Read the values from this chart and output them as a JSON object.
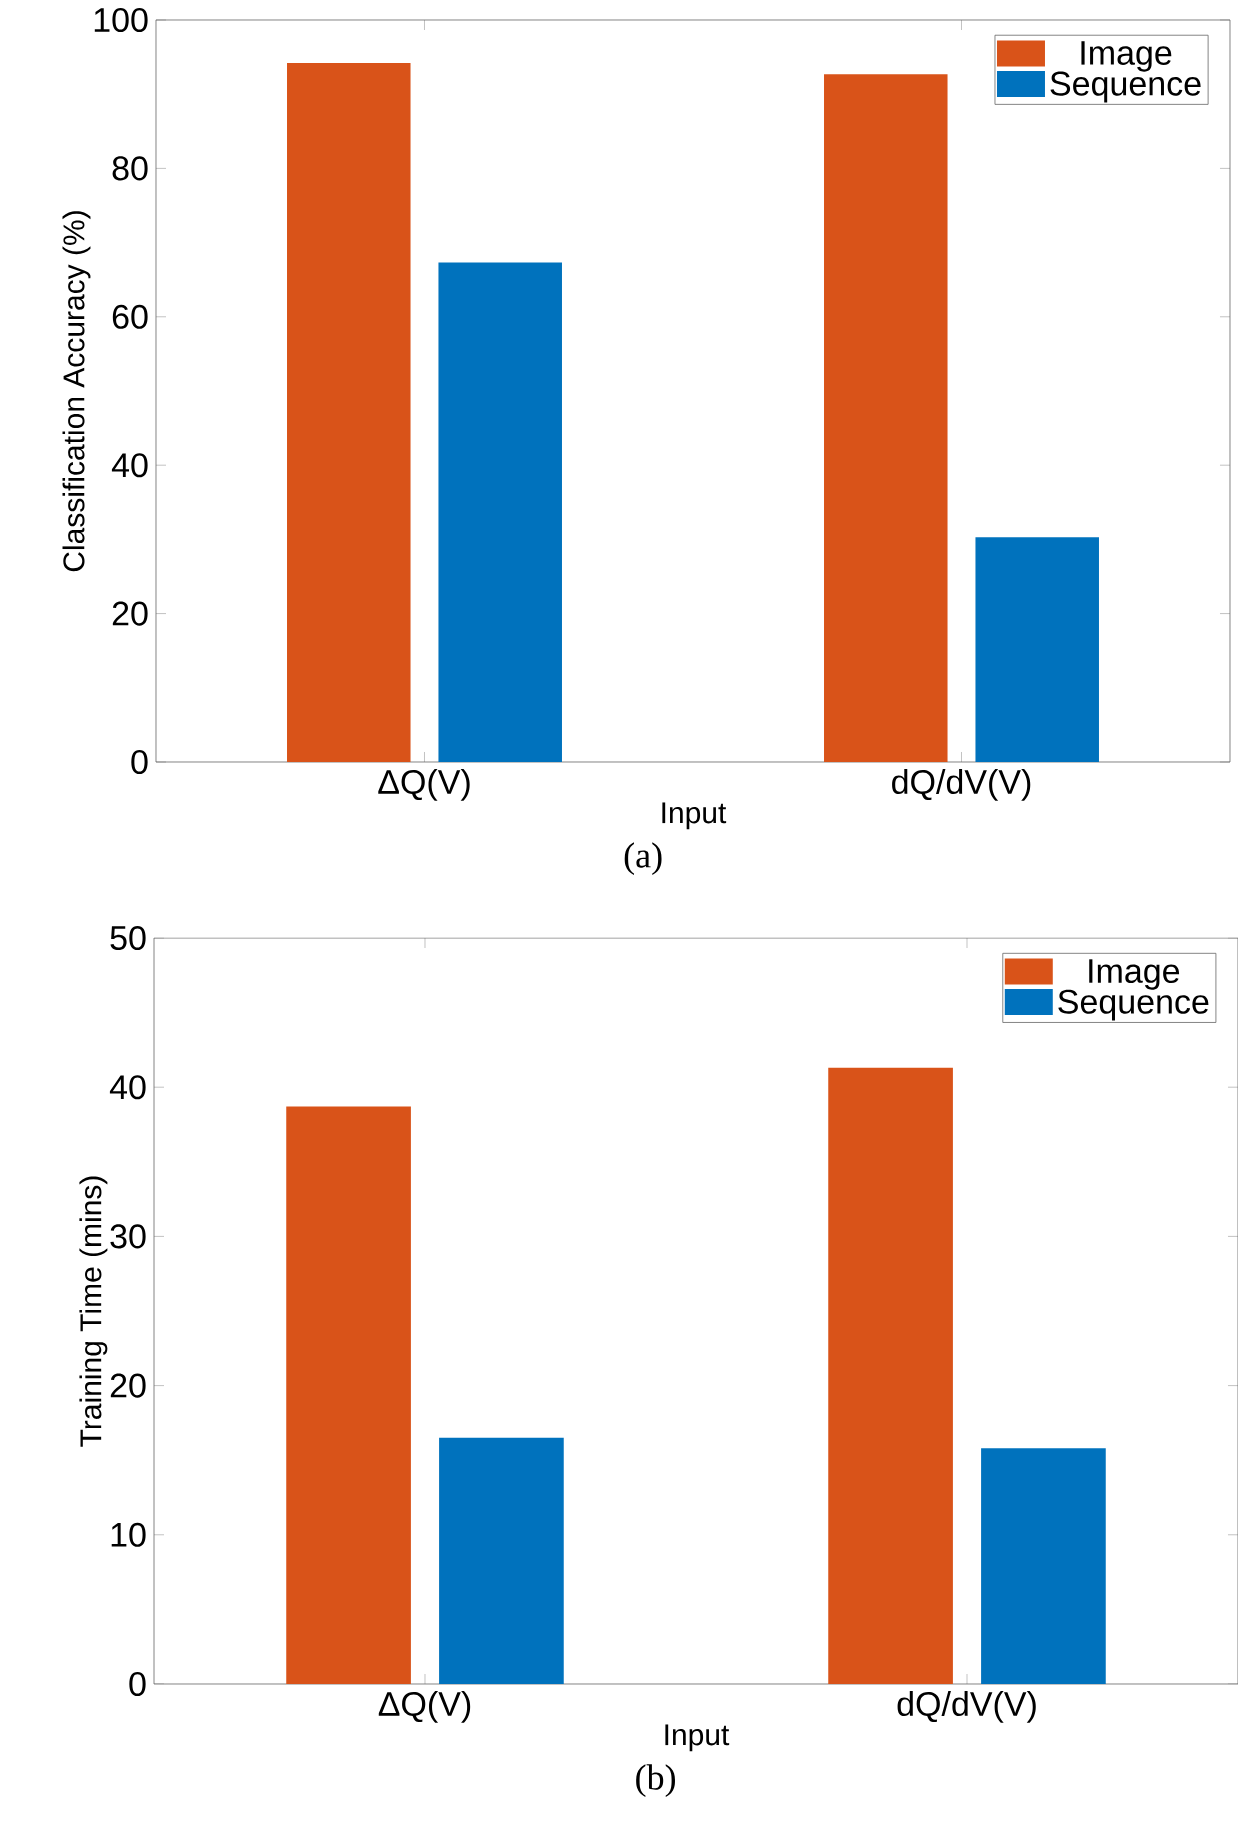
{
  "chart_data": [
    {
      "type": "bar",
      "categories": [
        "ΔQ(V)",
        "dQ/dV(V)"
      ],
      "xlabel": "Input",
      "ylabel": "Classification Accuracy (%)",
      "ylim": [
        0,
        100
      ],
      "yticks": [
        0,
        20,
        40,
        60,
        80,
        100
      ],
      "legend": "top right",
      "grid": false,
      "annotations": [
        "(a)"
      ],
      "series": [
        {
          "name": "Image",
          "color": "#d95319",
          "values": [
            94.2,
            92.7
          ]
        },
        {
          "name": "Sequence",
          "color": "#0072bd",
          "values": [
            67.3,
            30.3
          ]
        }
      ]
    },
    {
      "type": "bar",
      "categories": [
        "ΔQ(V)",
        "dQ/dV(V)"
      ],
      "xlabel": "Input",
      "ylabel": "Training Time (mins)",
      "ylim": [
        0,
        50
      ],
      "yticks": [
        0,
        10,
        20,
        30,
        40,
        50
      ],
      "legend": "top right",
      "grid": false,
      "annotations": [
        "(b)"
      ],
      "series": [
        {
          "name": "Image",
          "color": "#d95319",
          "values": [
            38.7,
            41.3
          ]
        },
        {
          "name": "Sequence",
          "color": "#0072bd",
          "values": [
            16.5,
            15.8
          ]
        }
      ]
    }
  ]
}
